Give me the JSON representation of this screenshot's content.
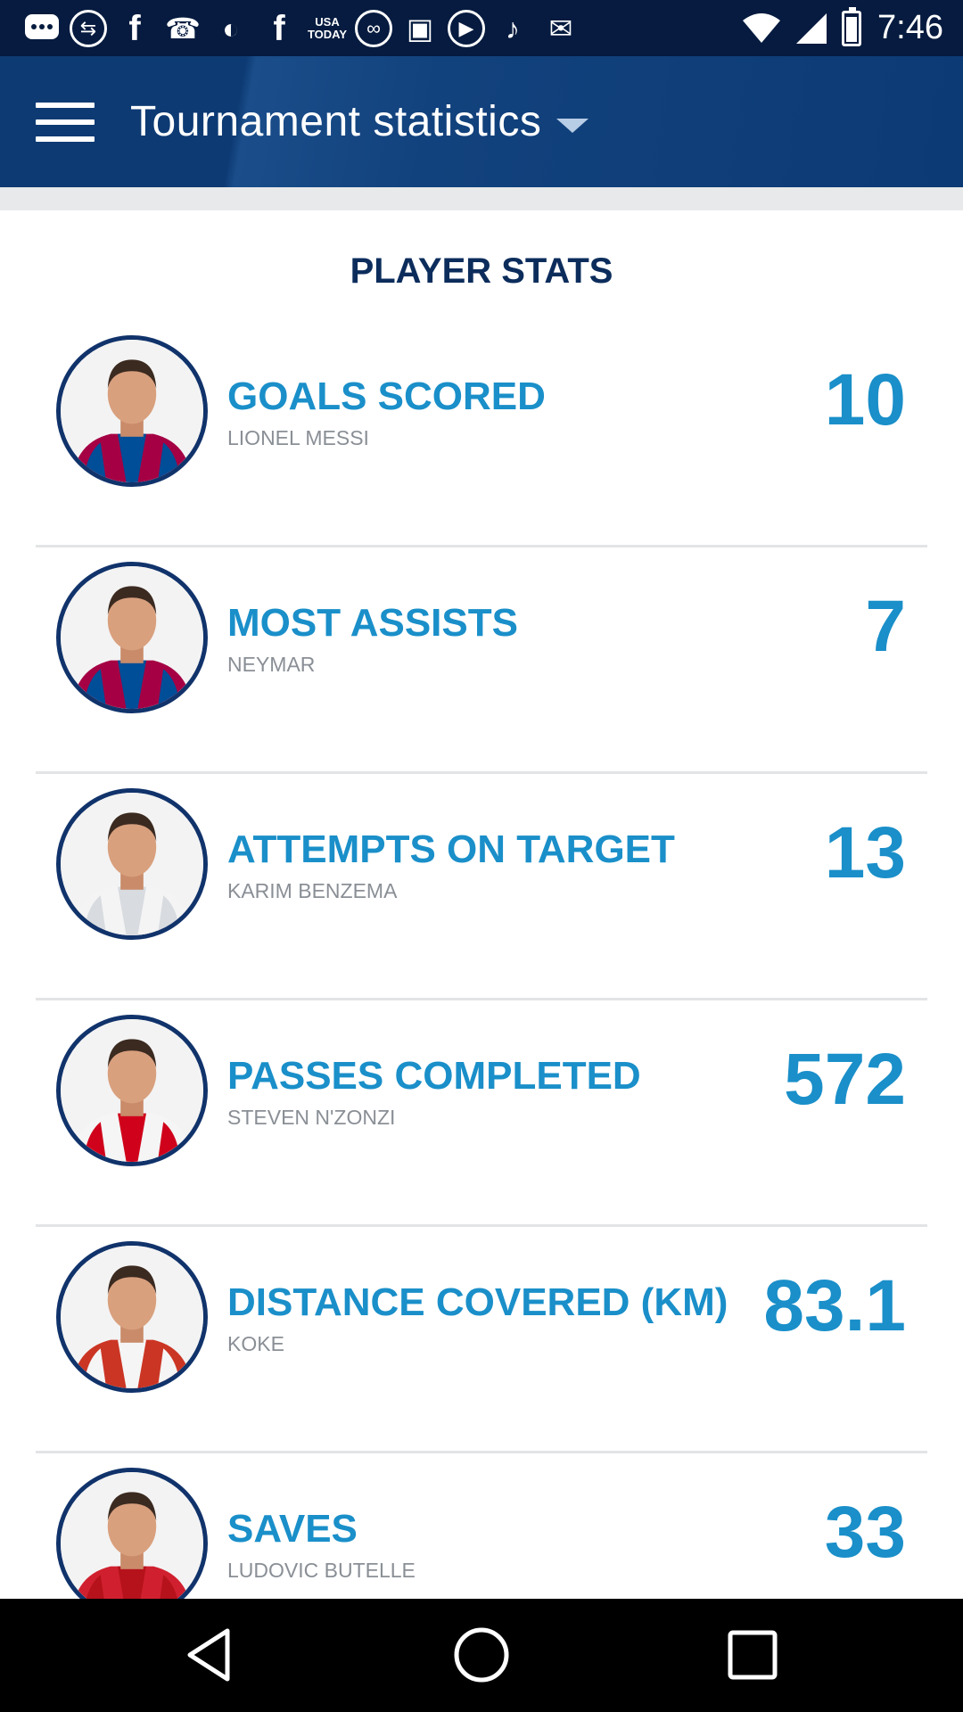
{
  "status_bar": {
    "time": "7:46",
    "icons": [
      "chat-icon",
      "usb-icon",
      "facebook-icon",
      "phone-icon",
      "moon-icon",
      "facebook-icon",
      "usa-today-icon",
      "link-icon",
      "tape-icon",
      "play-icon",
      "violin-icon",
      "inbox-icon"
    ],
    "usa_today_text": "USA TODAY"
  },
  "header": {
    "title": "Tournament statistics",
    "menu_icon": "hamburger-menu-icon",
    "dropdown_icon": "caret-down-icon"
  },
  "section": {
    "title": "PLAYER STATS"
  },
  "stats": [
    {
      "label": "GOALS SCORED",
      "player": "LIONEL MESSI",
      "value": "10",
      "kit": "barca"
    },
    {
      "label": "MOST ASSISTS",
      "player": "NEYMAR",
      "value": "7",
      "kit": "barca"
    },
    {
      "label": "ATTEMPTS ON TARGET",
      "player": "KARIM BENZEMA",
      "value": "13",
      "kit": "white"
    },
    {
      "label": "PASSES COMPLETED",
      "player": "STEVEN N'ZONZI",
      "value": "572",
      "kit": "sevilla"
    },
    {
      "label": "DISTANCE COVERED (KM)",
      "player": "KOKE",
      "value": "83.1",
      "kit": "atletico"
    },
    {
      "label": "SAVES",
      "player": "LUDOVIC BUTELLE",
      "value": "33",
      "kit": "red"
    }
  ],
  "colors": {
    "status_bar": "#061b3f",
    "header": "#0d3a73",
    "accent": "#1a8fc9",
    "section_title": "#0c2d5c",
    "player_name": "#8a8f96"
  },
  "nav": {
    "back": "back-icon",
    "home": "home-icon",
    "recent": "recent-apps-icon"
  }
}
